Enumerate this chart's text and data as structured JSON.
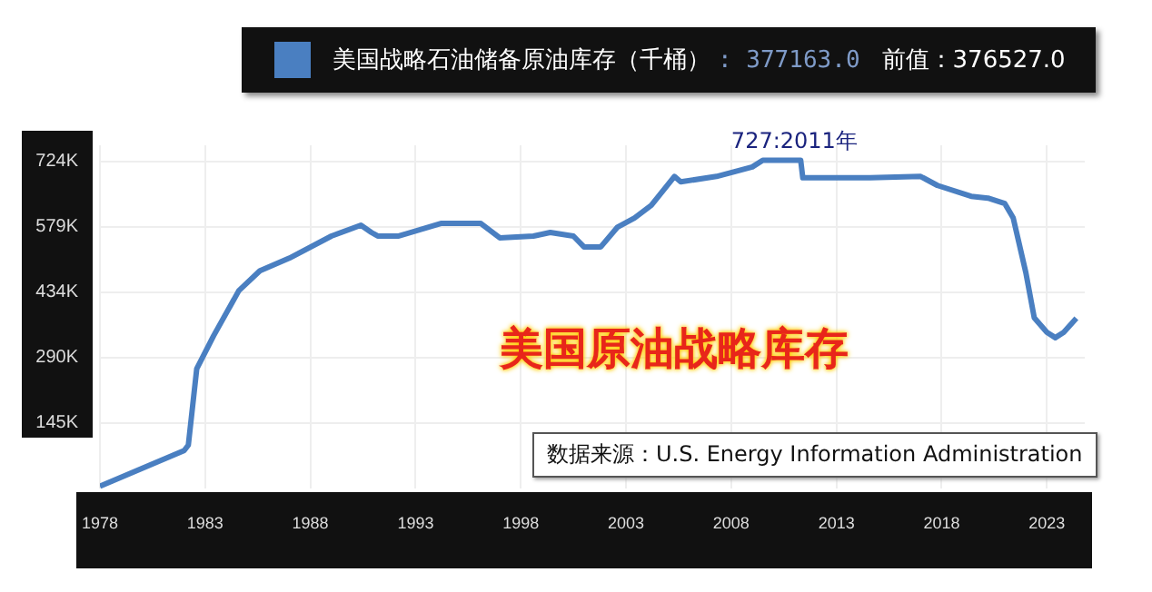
{
  "chart_data": {
    "type": "line",
    "title": "美国原油战略库存",
    "legend": "top",
    "series": [
      {
        "name": "美国战略石油储备原油库存（千桶）",
        "color": "#4a7fc1",
        "x": [
          1978,
          1982.0,
          1982.2,
          1982.6,
          1983.4,
          1984.6,
          1985.6,
          1987.0,
          1989.0,
          1990.4,
          1990.9,
          1991.2,
          1992.2,
          1994.2,
          1996.1,
          1997.0,
          1998.6,
          1999.4,
          2000.5,
          2001.0,
          2001.8,
          2002.6,
          2003.4,
          2004.2,
          2005.3,
          2005.6,
          2007.3,
          2009.0,
          2009.5,
          2011.3,
          2011.4,
          2014.6,
          2017.0,
          2017.8,
          2019.4,
          2020.2,
          2021.0,
          2021.4,
          2022.0,
          2022.4,
          2023.0,
          2023.4,
          2023.8,
          2024.4
        ],
        "values": [
          5,
          84,
          96,
          265,
          338,
          438,
          482,
          510,
          559,
          583,
          567,
          559,
          559,
          587,
          587,
          555,
          559,
          567,
          559,
          535,
          535,
          579,
          599,
          627,
          691,
          679,
          691,
          712,
          727,
          727,
          688,
          688,
          691,
          671,
          647,
          643,
          631,
          599,
          478,
          378,
          346,
          334,
          346,
          377
        ]
      }
    ],
    "annotations": [
      {
        "text": "727:2011年",
        "x": 2011,
        "y": 727
      },
      ": 377163.0",
      "前值：376527.0",
      "数据来源：U.S. Energy Information Administration"
    ],
    "xlim": [
      1978,
      2024.8
    ],
    "xticks": [
      1978,
      1983,
      1988,
      1993,
      1998,
      2003,
      2008,
      2013,
      2018,
      2023
    ],
    "ylim": [
      0,
      760
    ],
    "yticks": [
      {
        "value": 144.8,
        "label": "145K"
      },
      {
        "value": 289.6,
        "label": "290K"
      },
      {
        "value": 434.4,
        "label": "434K"
      },
      {
        "value": 579.2,
        "label": "579K"
      },
      {
        "value": 724,
        "label": "724K"
      }
    ],
    "grid": true,
    "marker": "none",
    "line_style": "solid"
  }
}
